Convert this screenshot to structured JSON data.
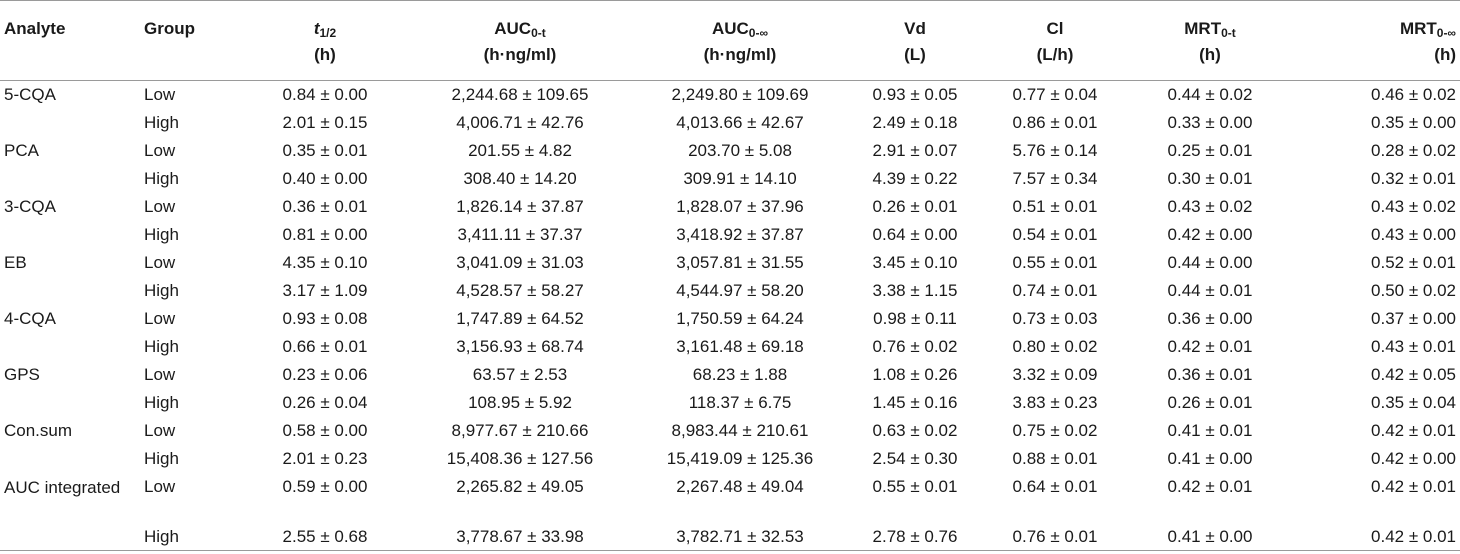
{
  "header": {
    "analyte": "Analyte",
    "group": "Group",
    "t_half": {
      "main": "t",
      "sub": "1/2",
      "unit": "(h)"
    },
    "auc_0t": {
      "main": "AUC",
      "sub": "0-t",
      "unit": "(h·ng/ml)"
    },
    "auc_0inf": {
      "main": "AUC",
      "sub": "0-∞",
      "unit": "(h·ng/ml)"
    },
    "vd": {
      "main": "Vd",
      "unit": "(L)"
    },
    "cl": {
      "main": "Cl",
      "unit": "(L/h)"
    },
    "mrt_0t": {
      "main": "MRT",
      "sub": "0-t",
      "unit": "(h)"
    },
    "mrt_0inf": {
      "main": "MRT",
      "sub": "0-∞",
      "unit": "(h)"
    }
  },
  "rows": [
    {
      "analyte": "5-CQA",
      "group": "Low",
      "t_half": "0.84 ± 0.00",
      "auc_0t": "2,244.68 ± 109.65",
      "auc_0inf": "2,249.80 ± 109.69",
      "vd": "0.93 ± 0.05",
      "cl": "0.77 ± 0.04",
      "mrt_0t": "0.44 ± 0.02",
      "mrt_0inf": "0.46 ± 0.02"
    },
    {
      "analyte": "",
      "group": "High",
      "t_half": "2.01 ± 0.15",
      "auc_0t": "4,006.71 ± 42.76",
      "auc_0inf": "4,013.66 ± 42.67",
      "vd": "2.49 ± 0.18",
      "cl": "0.86 ± 0.01",
      "mrt_0t": "0.33 ± 0.00",
      "mrt_0inf": "0.35 ± 0.00"
    },
    {
      "analyte": "PCA",
      "group": "Low",
      "t_half": "0.35 ± 0.01",
      "auc_0t": "201.55 ± 4.82",
      "auc_0inf": "203.70 ± 5.08",
      "vd": "2.91 ± 0.07",
      "cl": "5.76 ± 0.14",
      "mrt_0t": "0.25 ± 0.01",
      "mrt_0inf": "0.28 ± 0.02"
    },
    {
      "analyte": "",
      "group": "High",
      "t_half": "0.40 ± 0.00",
      "auc_0t": "308.40 ± 14.20",
      "auc_0inf": "309.91 ± 14.10",
      "vd": "4.39 ± 0.22",
      "cl": "7.57 ± 0.34",
      "mrt_0t": "0.30 ± 0.01",
      "mrt_0inf": "0.32 ± 0.01"
    },
    {
      "analyte": "3-CQA",
      "group": "Low",
      "t_half": "0.36 ± 0.01",
      "auc_0t": "1,826.14 ± 37.87",
      "auc_0inf": "1,828.07 ± 37.96",
      "vd": "0.26 ± 0.01",
      "cl": "0.51 ± 0.01",
      "mrt_0t": "0.43 ± 0.02",
      "mrt_0inf": "0.43 ± 0.02"
    },
    {
      "analyte": "",
      "group": "High",
      "t_half": "0.81 ± 0.00",
      "auc_0t": "3,411.11 ± 37.37",
      "auc_0inf": "3,418.92 ± 37.87",
      "vd": "0.64 ± 0.00",
      "cl": "0.54 ± 0.01",
      "mrt_0t": "0.42 ± 0.00",
      "mrt_0inf": "0.43 ± 0.00"
    },
    {
      "analyte": "EB",
      "group": "Low",
      "t_half": "4.35 ± 0.10",
      "auc_0t": "3,041.09 ± 31.03",
      "auc_0inf": "3,057.81 ± 31.55",
      "vd": "3.45 ± 0.10",
      "cl": "0.55 ± 0.01",
      "mrt_0t": "0.44 ± 0.00",
      "mrt_0inf": "0.52 ± 0.01"
    },
    {
      "analyte": "",
      "group": "High",
      "t_half": "3.17 ± 1.09",
      "auc_0t": "4,528.57 ± 58.27",
      "auc_0inf": "4,544.97 ± 58.20",
      "vd": "3.38 ± 1.15",
      "cl": "0.74 ± 0.01",
      "mrt_0t": "0.44 ± 0.01",
      "mrt_0inf": "0.50 ± 0.02"
    },
    {
      "analyte": "4-CQA",
      "group": "Low",
      "t_half": "0.93 ± 0.08",
      "auc_0t": "1,747.89 ± 64.52",
      "auc_0inf": "1,750.59 ± 64.24",
      "vd": "0.98 ± 0.11",
      "cl": "0.73 ± 0.03",
      "mrt_0t": "0.36 ± 0.00",
      "mrt_0inf": "0.37 ± 0.00"
    },
    {
      "analyte": "",
      "group": "High",
      "t_half": "0.66 ± 0.01",
      "auc_0t": "3,156.93 ± 68.74",
      "auc_0inf": "3,161.48 ± 69.18",
      "vd": "0.76 ± 0.02",
      "cl": "0.80 ± 0.02",
      "mrt_0t": "0.42 ± 0.01",
      "mrt_0inf": "0.43 ± 0.01"
    },
    {
      "analyte": "GPS",
      "group": "Low",
      "t_half": "0.23 ± 0.06",
      "auc_0t": "63.57 ± 2.53",
      "auc_0inf": "68.23 ± 1.88",
      "vd": "1.08 ± 0.26",
      "cl": "3.32 ± 0.09",
      "mrt_0t": "0.36 ± 0.01",
      "mrt_0inf": "0.42 ± 0.05"
    },
    {
      "analyte": "",
      "group": "High",
      "t_half": "0.26 ± 0.04",
      "auc_0t": "108.95 ± 5.92",
      "auc_0inf": "118.37 ± 6.75",
      "vd": "1.45 ± 0.16",
      "cl": "3.83 ± 0.23",
      "mrt_0t": "0.26 ± 0.01",
      "mrt_0inf": "0.35 ± 0.04"
    },
    {
      "analyte": "Con.sum",
      "group": "Low",
      "t_half": "0.58 ± 0.00",
      "auc_0t": "8,977.67 ± 210.66",
      "auc_0inf": "8,983.44 ± 210.61",
      "vd": "0.63 ± 0.02",
      "cl": "0.75 ± 0.02",
      "mrt_0t": "0.41 ± 0.01",
      "mrt_0inf": "0.42 ± 0.01"
    },
    {
      "analyte": "",
      "group": "High",
      "t_half": "2.01 ± 0.23",
      "auc_0t": "15,408.36 ± 127.56",
      "auc_0inf": "15,419.09 ± 125.36",
      "vd": "2.54 ± 0.30",
      "cl": "0.88 ± 0.01",
      "mrt_0t": "0.41 ± 0.00",
      "mrt_0inf": "0.42 ± 0.00"
    },
    {
      "analyte": "AUC integrated",
      "group": "Low",
      "t_half": "0.59 ± 0.00",
      "auc_0t": "2,265.82 ± 49.05",
      "auc_0inf": "2,267.48 ± 49.04",
      "vd": "0.55 ± 0.01",
      "cl": "0.64 ± 0.01",
      "mrt_0t": "0.42 ± 0.01",
      "mrt_0inf": "0.42 ± 0.01"
    },
    {
      "analyte": "",
      "group": "High",
      "t_half": "2.55 ± 0.68",
      "auc_0t": "3,778.67 ± 33.98",
      "auc_0inf": "3,782.71 ± 32.53",
      "vd": "2.78 ± 0.76",
      "cl": "0.76 ± 0.01",
      "mrt_0t": "0.41 ± 0.00",
      "mrt_0inf": "0.42 ± 0.01"
    }
  ]
}
